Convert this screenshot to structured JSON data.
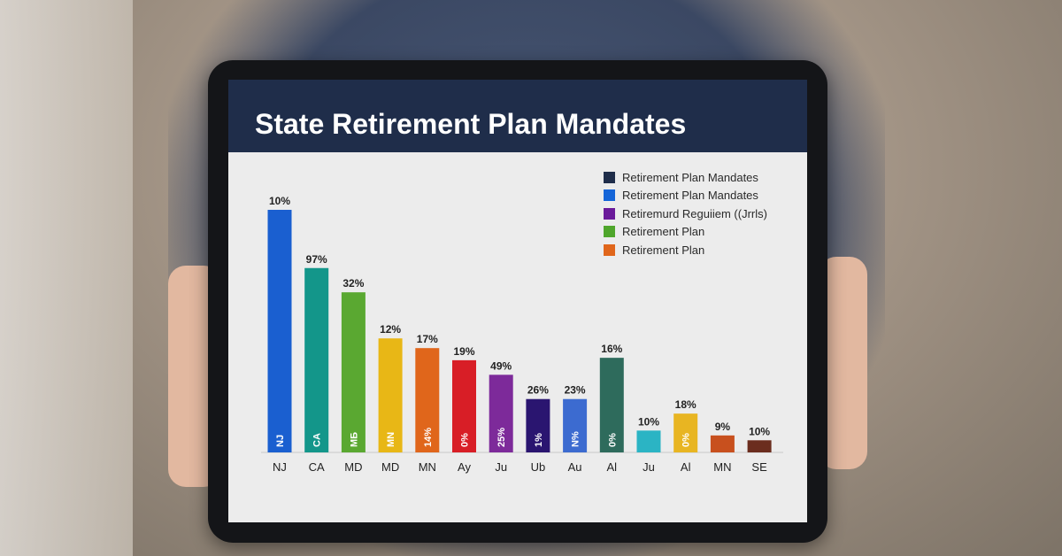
{
  "title": "State Retirement Plan Mandates",
  "legend": [
    {
      "label": "Retirement Plan Mandates",
      "color": "#1f2d4a"
    },
    {
      "label": "Retirement Plan Mandates",
      "color": "#1565d8"
    },
    {
      "label": "Retiremurd Reguiiem ((Jrrls)",
      "color": "#6a1a9a"
    },
    {
      "label": "Retirement Plan",
      "color": "#4fa62c"
    },
    {
      "label": "Retirement Plan",
      "color": "#e0661b"
    }
  ],
  "chart_data": {
    "type": "bar",
    "title": "State Retirement Plan Mandates",
    "categories": [
      "NJ",
      "CA",
      "MD",
      "MD",
      "MN",
      "Ay",
      "Ju",
      "Ub",
      "Au",
      "Al",
      "Ju",
      "Al",
      "MN",
      "SE"
    ],
    "relative_heights": [
      100,
      76,
      66,
      47,
      43,
      38,
      32,
      22,
      22,
      39,
      9,
      16,
      7,
      5
    ],
    "data_labels": [
      "10%",
      "97%",
      "32%",
      "12%",
      "17%",
      "19%",
      "49%",
      "26%",
      "23%",
      "16%",
      "10%",
      "18%",
      "9%",
      "10%"
    ],
    "inner_labels": [
      "NJ",
      "CA",
      "MБ",
      "MN",
      "14%",
      "0%",
      "25%",
      "1%",
      "N%",
      "0%",
      "",
      "0%",
      "",
      ""
    ],
    "colors": [
      "#1a5fd0",
      "#13968a",
      "#5aa831",
      "#e8b716",
      "#e0661b",
      "#d81e26",
      "#7d2a9a",
      "#2a1570",
      "#3c6bd0",
      "#2e6b5c",
      "#2bb4c4",
      "#e8b522",
      "#c8501e",
      "#6b2d1e"
    ],
    "legend_position": "top-right",
    "grid": false
  }
}
